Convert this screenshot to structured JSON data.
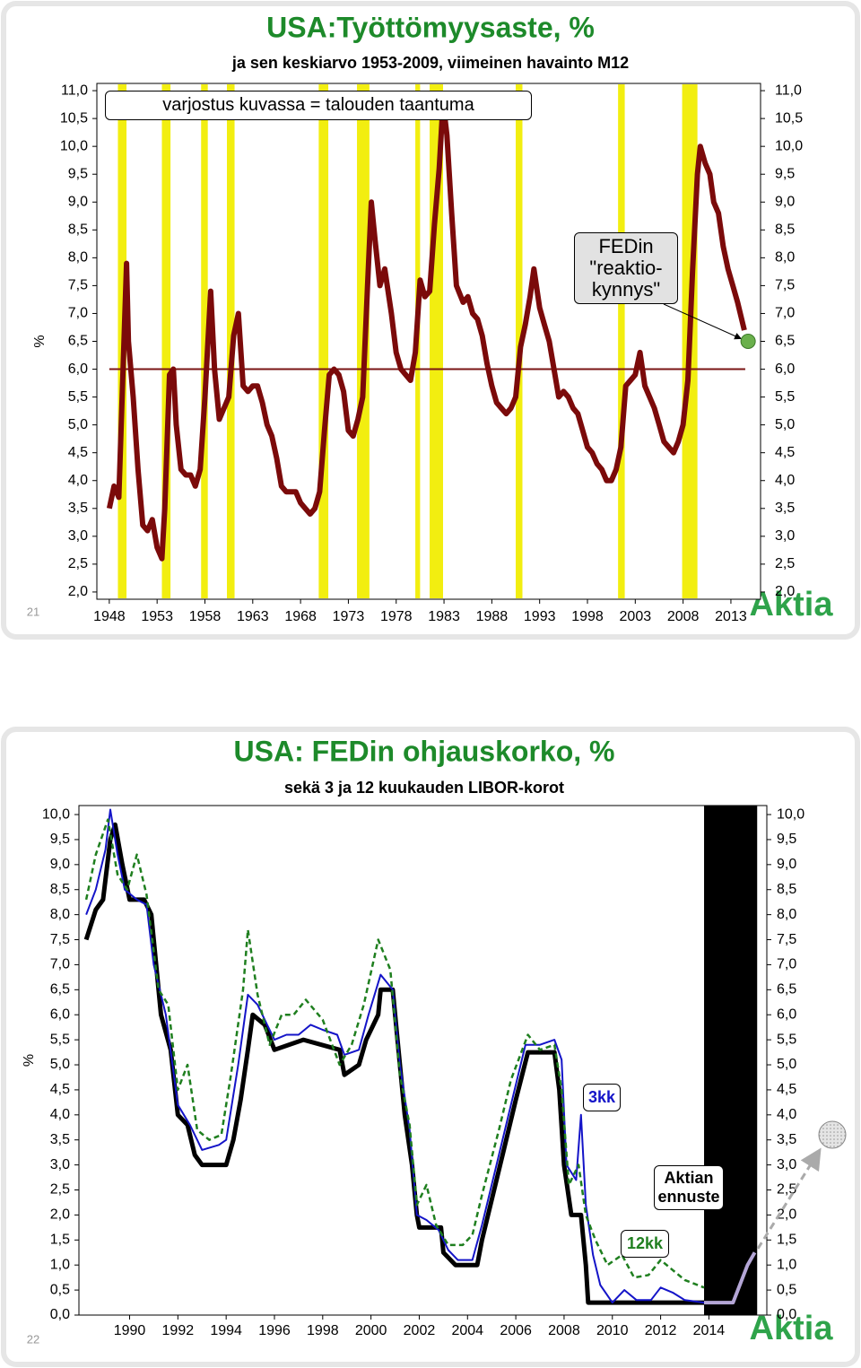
{
  "chart_data": [
    {
      "type": "line",
      "title": "USA:Työttömyysaste, %",
      "subtitle": "ja sen keskiarvo 1953-2009, viimeinen havainto M12",
      "ylabel": "%",
      "slide_number": "21",
      "logo": "Aktia",
      "recession_note": "varjostus kuvassa = talouden taantuma",
      "threshold_note": [
        "FEDin",
        "\"reaktio-",
        "kynnys\""
      ],
      "threshold": {
        "x": 2014.8,
        "value": 6.5,
        "color": "#6ab04c"
      },
      "recession_color": "#f2ee10",
      "recessions": [
        [
          1948.9,
          1949.8
        ],
        [
          1953.5,
          1954.4
        ],
        [
          1957.6,
          1958.3
        ],
        [
          1960.3,
          1961.1
        ],
        [
          1969.9,
          1970.9
        ],
        [
          1973.9,
          1975.2
        ],
        [
          1980.0,
          1980.5
        ],
        [
          1981.5,
          1982.9
        ],
        [
          1990.5,
          1991.2
        ],
        [
          2001.2,
          2001.9
        ],
        [
          2007.9,
          2009.5
        ]
      ],
      "mean": {
        "value": 6,
        "x": [
          1948,
          2014.5
        ],
        "color": "#7a1414"
      },
      "xlim": [
        1946.7,
        2016.1
      ],
      "xticks": [
        1948,
        1953,
        1958,
        1963,
        1968,
        1973,
        1978,
        1983,
        1988,
        1993,
        1998,
        2003,
        2008,
        2013
      ],
      "ylim": [
        1.87,
        11.13
      ],
      "yticks": [
        {
          "value": 2,
          "label": "2,0"
        },
        {
          "value": 2.5,
          "label": "2,5"
        },
        {
          "value": 3,
          "label": "3,0"
        },
        {
          "value": 3.5,
          "label": "3,5"
        },
        {
          "value": 4,
          "label": "4,0"
        },
        {
          "value": 4.5,
          "label": "4,5"
        },
        {
          "value": 5,
          "label": "5,0"
        },
        {
          "value": 5.5,
          "label": "5,5"
        },
        {
          "value": 6,
          "label": "6,0"
        },
        {
          "value": 6.5,
          "label": "6,5"
        },
        {
          "value": 7,
          "label": "7,0"
        },
        {
          "value": 7.5,
          "label": "7,5"
        },
        {
          "value": 8,
          "label": "8,0"
        },
        {
          "value": 8.5,
          "label": "8,5"
        },
        {
          "value": 9,
          "label": "9,0"
        },
        {
          "value": 9.5,
          "label": "9,5"
        },
        {
          "value": 10,
          "label": "10,0"
        },
        {
          "value": 10.5,
          "label": "10,5"
        },
        {
          "value": 11,
          "label": "11,0"
        }
      ],
      "series": [
        {
          "color": "#7b0a0a",
          "x": [
            1948.0,
            1948.5,
            1949.0,
            1949.8,
            1950.0,
            1950.5,
            1951.0,
            1951.5,
            1952.0,
            1952.5,
            1953.0,
            1953.5,
            1953.8,
            1954.3,
            1954.7,
            1955.0,
            1955.5,
            1956.0,
            1956.5,
            1957.0,
            1957.5,
            1958.0,
            1958.6,
            1959.0,
            1959.5,
            1960.0,
            1960.5,
            1961.0,
            1961.5,
            1962.0,
            1962.5,
            1963.0,
            1963.5,
            1964.0,
            1964.5,
            1965.0,
            1965.5,
            1966.0,
            1966.5,
            1967.0,
            1967.5,
            1968.0,
            1968.5,
            1969.0,
            1969.5,
            1970.0,
            1970.5,
            1971.0,
            1971.5,
            1972.0,
            1972.5,
            1973.0,
            1973.5,
            1974.0,
            1974.5,
            1975.0,
            1975.4,
            1975.8,
            1976.3,
            1976.8,
            1977.5,
            1978.0,
            1978.5,
            1979.0,
            1979.5,
            1980.0,
            1980.5,
            1981.0,
            1981.5,
            1982.0,
            1982.5,
            1982.9,
            1983.3,
            1983.8,
            1984.3,
            1985.0,
            1985.5,
            1986.0,
            1986.5,
            1987.0,
            1987.5,
            1988.0,
            1988.5,
            1989.0,
            1989.5,
            1990.0,
            1990.5,
            1991.0,
            1991.5,
            1992.0,
            1992.4,
            1993.0,
            1993.5,
            1994.0,
            1994.5,
            1995.0,
            1995.5,
            1996.0,
            1996.5,
            1997.0,
            1997.5,
            1998.0,
            1998.5,
            1999.0,
            1999.5,
            2000.0,
            2000.5,
            2001.0,
            2001.5,
            2002.0,
            2002.5,
            2003.0,
            2003.5,
            2004.0,
            2004.5,
            2005.0,
            2005.5,
            2006.0,
            2006.5,
            2007.0,
            2007.5,
            2008.0,
            2008.5,
            2009.0,
            2009.5,
            2009.8,
            2010.3,
            2010.8,
            2011.2,
            2011.7,
            2012.2,
            2012.7,
            2013.2,
            2013.7,
            2014.4
          ],
          "values": [
            3.5,
            3.9,
            3.7,
            7.9,
            6.5,
            5.5,
            4.2,
            3.2,
            3.1,
            3.3,
            2.8,
            2.6,
            3.5,
            5.9,
            6.0,
            5.0,
            4.2,
            4.1,
            4.1,
            3.9,
            4.2,
            5.5,
            7.4,
            6.0,
            5.1,
            5.3,
            5.5,
            6.6,
            7.0,
            5.7,
            5.6,
            5.7,
            5.7,
            5.4,
            5.0,
            4.8,
            4.4,
            3.9,
            3.8,
            3.8,
            3.8,
            3.6,
            3.5,
            3.4,
            3.5,
            3.8,
            4.9,
            5.9,
            6.0,
            5.9,
            5.6,
            4.9,
            4.8,
            5.1,
            5.5,
            7.5,
            9.0,
            8.3,
            7.5,
            7.8,
            7.0,
            6.3,
            6.0,
            5.9,
            5.8,
            6.3,
            7.6,
            7.3,
            7.4,
            8.6,
            9.6,
            10.8,
            10.2,
            8.8,
            7.5,
            7.2,
            7.3,
            7.0,
            6.9,
            6.6,
            6.1,
            5.7,
            5.4,
            5.3,
            5.2,
            5.3,
            5.5,
            6.4,
            6.8,
            7.3,
            7.8,
            7.1,
            6.8,
            6.5,
            6.0,
            5.5,
            5.6,
            5.5,
            5.3,
            5.2,
            4.9,
            4.6,
            4.5,
            4.3,
            4.2,
            4.0,
            4.0,
            4.2,
            4.6,
            5.7,
            5.8,
            5.9,
            6.3,
            5.7,
            5.5,
            5.3,
            5.0,
            4.7,
            4.6,
            4.5,
            4.7,
            5.0,
            5.8,
            7.8,
            9.5,
            10.0,
            9.7,
            9.5,
            9.0,
            8.8,
            8.2,
            7.8,
            7.5,
            7.2,
            6.7
          ]
        }
      ]
    },
    {
      "type": "line",
      "title": "USA: FEDin ohjauskorko, %",
      "subtitle": "sekä 3 ja 12 kuukauden LIBOR-korot",
      "ylabel": "%",
      "slide_number": "22",
      "logo": "Aktia",
      "forecast_region": [
        2013.8,
        2016.0
      ],
      "forecast_color": "#000000",
      "xlim": [
        1987.9,
        2016.4
      ],
      "xticks": [
        1990,
        1992,
        1994,
        1996,
        1998,
        2000,
        2002,
        2004,
        2006,
        2008,
        2010,
        2012,
        2014
      ],
      "ylim": [
        0,
        10.18
      ],
      "yticks": [
        {
          "value": 0,
          "label": "0,0"
        },
        {
          "value": 0.5,
          "label": "0,5"
        },
        {
          "value": 1,
          "label": "1,0"
        },
        {
          "value": 1.5,
          "label": "1,5"
        },
        {
          "value": 2,
          "label": "2,0"
        },
        {
          "value": 2.5,
          "label": "2,5"
        },
        {
          "value": 3,
          "label": "3,0"
        },
        {
          "value": 3.5,
          "label": "3,5"
        },
        {
          "value": 4,
          "label": "4,0"
        },
        {
          "value": 4.5,
          "label": "4,5"
        },
        {
          "value": 5,
          "label": "5,0"
        },
        {
          "value": 5.5,
          "label": "5,5"
        },
        {
          "value": 6,
          "label": "6,0"
        },
        {
          "value": 6.5,
          "label": "6,5"
        },
        {
          "value": 7,
          "label": "7,0"
        },
        {
          "value": 7.5,
          "label": "7,5"
        },
        {
          "value": 8,
          "label": "8,0"
        },
        {
          "value": 8.5,
          "label": "8,5"
        },
        {
          "value": 9,
          "label": "9,0"
        },
        {
          "value": 9.5,
          "label": "9,5"
        },
        {
          "value": 10,
          "label": "10,0"
        }
      ],
      "series": [
        {
          "color": "#000000",
          "x": [
            1988.2,
            1988.6,
            1988.9,
            1989.2,
            1989.4,
            1989.7,
            1990.0,
            1990.6,
            1990.9,
            1991.3,
            1991.7,
            1992.0,
            1992.4,
            1992.7,
            1993.0,
            1994.0,
            1994.3,
            1994.6,
            1994.9,
            1995.1,
            1995.6,
            1996.0,
            1997.2,
            1998.7,
            1998.9,
            1999.5,
            1999.8,
            2000.3,
            2000.4,
            2000.9,
            2001.1,
            2001.4,
            2001.7,
            2001.9,
            2002.0,
            2002.9,
            2003.0,
            2003.5,
            2004.4,
            2004.6,
            2005.0,
            2005.5,
            2006.0,
            2006.5,
            2007.6,
            2007.8,
            2008.0,
            2008.3,
            2008.7,
            2008.9,
            2009.0,
            2014.0
          ],
          "values": [
            7.5,
            8.1,
            8.3,
            9.5,
            9.8,
            9.0,
            8.3,
            8.3,
            8.0,
            6.0,
            5.3,
            4.0,
            3.8,
            3.2,
            3.0,
            3.0,
            3.5,
            4.3,
            5.3,
            6.0,
            5.8,
            5.3,
            5.5,
            5.3,
            4.8,
            5.0,
            5.5,
            6.0,
            6.5,
            6.5,
            5.5,
            4.0,
            3.0,
            2.0,
            1.75,
            1.75,
            1.25,
            1.0,
            1.0,
            1.5,
            2.3,
            3.3,
            4.3,
            5.25,
            5.25,
            4.5,
            3.0,
            2.0,
            2.0,
            1.0,
            0.25,
            0.25
          ]
        },
        {
          "name": "3kk",
          "color": "#1414c8",
          "x": [
            1988.2,
            1988.6,
            1989.0,
            1989.2,
            1989.5,
            1989.8,
            1990.3,
            1990.7,
            1991.0,
            1991.5,
            1992.0,
            1992.5,
            1993.0,
            1993.7,
            1994.0,
            1994.5,
            1994.9,
            1995.3,
            1995.7,
            1996.0,
            1996.5,
            1997.0,
            1997.5,
            1998.0,
            1998.6,
            1998.9,
            1999.5,
            1999.9,
            2000.4,
            2000.9,
            2001.2,
            2001.6,
            2001.9,
            2002.3,
            2002.8,
            2003.2,
            2003.6,
            2004.2,
            2004.6,
            2005.2,
            2005.8,
            2006.4,
            2007.0,
            2007.6,
            2007.9,
            2008.1,
            2008.5,
            2008.7,
            2008.9,
            2009.2,
            2009.5,
            2010.0,
            2010.5,
            2011.0,
            2011.6,
            2012.0,
            2012.5,
            2013.0,
            2013.8
          ],
          "values": [
            8.0,
            8.5,
            9.3,
            10.1,
            9.2,
            8.5,
            8.3,
            8.2,
            7.0,
            6.0,
            4.2,
            3.8,
            3.3,
            3.4,
            3.5,
            5.0,
            6.4,
            6.2,
            5.8,
            5.5,
            5.6,
            5.6,
            5.8,
            5.7,
            5.6,
            5.2,
            5.3,
            6.0,
            6.8,
            6.5,
            5.0,
            3.7,
            2.0,
            1.9,
            1.7,
            1.3,
            1.1,
            1.1,
            1.8,
            3.0,
            4.2,
            5.4,
            5.4,
            5.5,
            5.1,
            3.0,
            2.7,
            4.0,
            2.2,
            1.2,
            0.6,
            0.25,
            0.5,
            0.3,
            0.3,
            0.55,
            0.45,
            0.3,
            0.25
          ]
        },
        {
          "name": "12kk",
          "color": "#1f7f1f",
          "dashed": true,
          "x": [
            1988.2,
            1988.6,
            1989.1,
            1989.5,
            1989.9,
            1990.3,
            1990.7,
            1991.2,
            1991.6,
            1992.0,
            1992.4,
            1992.8,
            1993.3,
            1993.8,
            1994.2,
            1994.7,
            1994.9,
            1995.3,
            1995.8,
            1996.3,
            1996.8,
            1997.3,
            1998.0,
            1998.7,
            1999.2,
            1999.7,
            2000.3,
            2000.8,
            2001.2,
            2001.6,
            2001.9,
            2002.3,
            2002.7,
            2003.2,
            2003.8,
            2004.2,
            2004.6,
            2005.3,
            2005.8,
            2006.5,
            2007.0,
            2007.6,
            2007.9,
            2008.2,
            2008.6,
            2008.9,
            2009.3,
            2009.8,
            2010.4,
            2010.9,
            2011.5,
            2012.0,
            2012.5,
            2013.0,
            2013.8
          ],
          "values": [
            8.3,
            9.2,
            9.9,
            8.8,
            8.5,
            9.2,
            8.4,
            6.5,
            6.2,
            4.5,
            5.0,
            3.7,
            3.5,
            3.6,
            4.8,
            6.5,
            7.7,
            6.4,
            5.4,
            6.0,
            6.0,
            6.3,
            5.9,
            5.0,
            5.4,
            6.2,
            7.5,
            6.9,
            4.8,
            3.8,
            2.2,
            2.6,
            1.8,
            1.4,
            1.4,
            1.6,
            2.4,
            3.7,
            4.7,
            5.6,
            5.3,
            5.4,
            4.5,
            2.6,
            3.0,
            2.0,
            1.5,
            1.0,
            1.2,
            0.75,
            0.8,
            1.1,
            0.9,
            0.7,
            0.55
          ]
        },
        {
          "name": "Aktian ennuste",
          "color": "#b4a6d6",
          "x": [
            2013.8,
            2015.0,
            2015.2,
            2015.4,
            2015.6,
            2015.9
          ],
          "values": [
            0.25,
            0.25,
            0.5,
            0.75,
            1.0,
            1.25
          ]
        }
      ]
    }
  ]
}
